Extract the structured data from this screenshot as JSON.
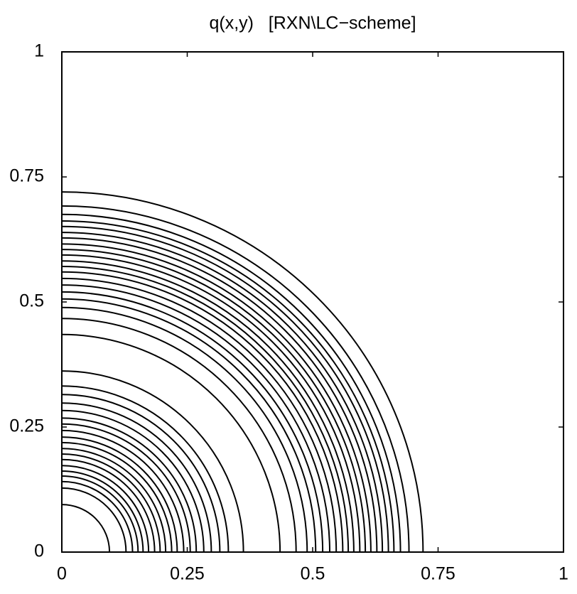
{
  "chart_data": {
    "type": "contour",
    "title": "q(x,y)   [RXN\\LC−scheme]",
    "xlim": [
      0,
      1
    ],
    "ylim": [
      0,
      1
    ],
    "xticks": [
      0,
      0.25,
      0.5,
      0.75,
      1
    ],
    "yticks": [
      0,
      0.25,
      0.5,
      0.75,
      1
    ],
    "color": "#000000",
    "contour_radii": [
      0.72,
      0.692,
      0.675,
      0.662,
      0.651,
      0.639,
      0.628,
      0.616,
      0.605,
      0.594,
      0.582,
      0.571,
      0.56,
      0.547,
      0.534,
      0.52,
      0.506,
      0.489,
      0.467,
      0.435,
      0.362,
      0.332,
      0.315,
      0.298,
      0.283,
      0.268,
      0.256,
      0.243,
      0.23,
      0.219,
      0.207,
      0.196,
      0.185,
      0.173,
      0.162,
      0.152,
      0.141,
      0.128,
      0.095
    ]
  }
}
